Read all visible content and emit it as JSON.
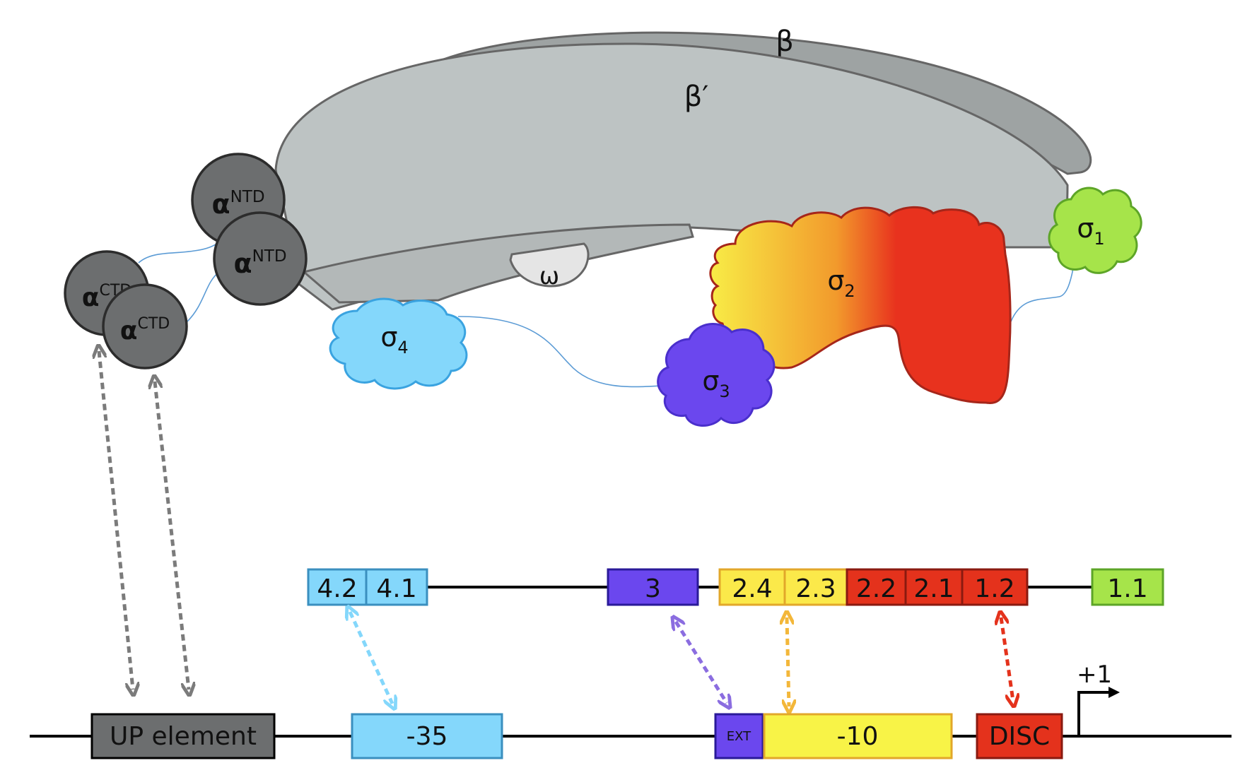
{
  "colors": {
    "beta": "#9ea3a3",
    "beta_prime": "#bdc3c3",
    "alpha": "#6c6e6f",
    "omega": "#e5e5e5",
    "sigma1": "#a6e44a",
    "sigma2_start": "#f8ec46",
    "sigma2_end": "#e8321e",
    "sigma3": "#6b47ee",
    "sigma4": "#84d7fb",
    "up_element": "#6c6e6f",
    "minus35": "#84d7fb",
    "ext": "#6b47ee",
    "minus10": "#f8f347",
    "disc": "#e4321c",
    "arrow_gray": "#7b7b7b",
    "arrow_cyan": "#84d7fb",
    "arrow_purple": "#8b6de0",
    "arrow_yellow": "#f3b73a",
    "arrow_red": "#e4321c"
  },
  "rnap": {
    "beta": "β",
    "beta_prime": "β′",
    "omega": "ω",
    "alpha_ntd_1": {
      "base": "α",
      "sup": "NTD"
    },
    "alpha_ntd_2": {
      "base": "α",
      "sup": "NTD"
    },
    "alpha_ctd_1": {
      "base": "α",
      "sup": "CTD"
    },
    "alpha_ctd_2": {
      "base": "α",
      "sup": "CTD"
    },
    "sigma1": {
      "base": "σ",
      "sub": "1"
    },
    "sigma2": {
      "base": "σ",
      "sub": "2"
    },
    "sigma3": {
      "base": "σ",
      "sub": "3"
    },
    "sigma4": {
      "base": "σ",
      "sub": "4"
    }
  },
  "sigma_regions": [
    {
      "label": "4.2",
      "color": "#84d7fb"
    },
    {
      "label": "4.1",
      "color": "#84d7fb"
    },
    {
      "label": "3",
      "color": "#6b47ee"
    },
    {
      "label": "2.4",
      "color": "#fbe94a"
    },
    {
      "label": "2.3",
      "color": "#fbe94a"
    },
    {
      "label": "2.2",
      "color": "#e4321c"
    },
    {
      "label": "2.1",
      "color": "#e4321c"
    },
    {
      "label": "1.2",
      "color": "#e4321c"
    },
    {
      "label": "1.1",
      "color": "#a6e44a"
    }
  ],
  "promoter": {
    "up_element": "UP element",
    "minus35": "-35",
    "ext": "EXT",
    "minus10": "-10",
    "disc": "DISC",
    "tss": "+1"
  }
}
